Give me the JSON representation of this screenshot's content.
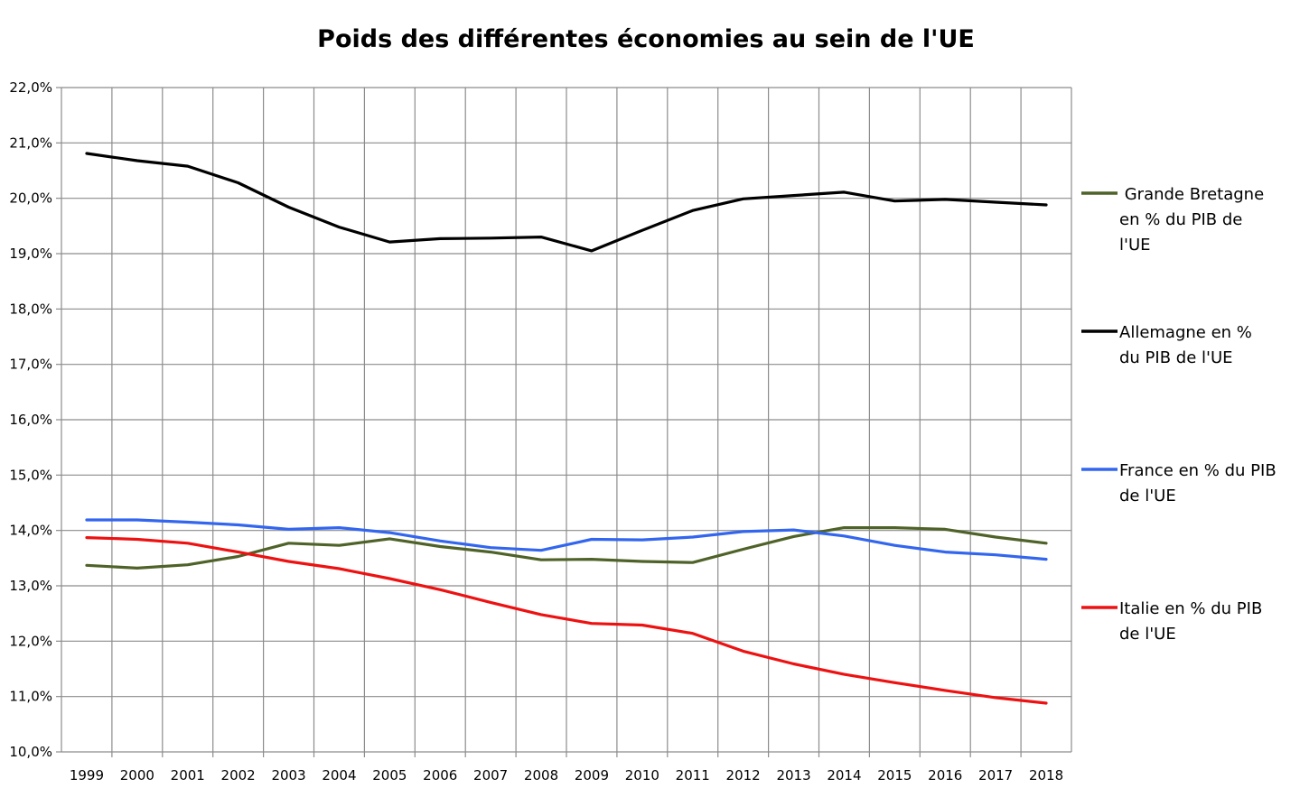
{
  "chart_data": {
    "type": "line",
    "title": "Poids des différentes économies au sein de l'UE",
    "xlabel": "",
    "ylabel": "",
    "ylim": [
      10.0,
      22.0
    ],
    "y_ticks": [
      "10,0%",
      "11,0%",
      "12,0%",
      "13,0%",
      "14,0%",
      "15,0%",
      "16,0%",
      "17,0%",
      "18,0%",
      "19,0%",
      "20,0%",
      "21,0%",
      "22,0%"
    ],
    "y_tick_values": [
      10,
      11,
      12,
      13,
      14,
      15,
      16,
      17,
      18,
      19,
      20,
      21,
      22
    ],
    "categories": [
      "1999",
      "2000",
      "2001",
      "2002",
      "2003",
      "2004",
      "2005",
      "2006",
      "2007",
      "2008",
      "2009",
      "2010",
      "2011",
      "2012",
      "2013",
      "2014",
      "2015",
      "2016",
      "2017",
      "2018"
    ],
    "grid": true,
    "legend_position": "right",
    "series": [
      {
        "name": "Grande Bretagne en % du PIB de l'UE",
        "legend_lines": [
          " Grande Bretagne",
          "en % du PIB de",
          "l'UE"
        ],
        "color": "#4f6228",
        "values": [
          13.37,
          13.32,
          13.38,
          13.53,
          13.77,
          13.73,
          13.85,
          13.71,
          13.61,
          13.47,
          13.48,
          13.44,
          13.42,
          13.66,
          13.89,
          14.05,
          14.05,
          14.02,
          13.88,
          13.77
        ]
      },
      {
        "name": "Allemagne en % du PIB de l'UE",
        "legend_lines": [
          "Allemagne en %",
          "du PIB de l'UE"
        ],
        "color": "#000000",
        "values": [
          20.81,
          20.68,
          20.58,
          20.28,
          19.84,
          19.48,
          19.21,
          19.27,
          19.28,
          19.3,
          19.05,
          19.42,
          19.78,
          19.99,
          20.05,
          20.11,
          19.95,
          19.98,
          19.93,
          19.88
        ]
      },
      {
        "name": "France en % du PIB de l'UE",
        "legend_lines": [
          "France en % du PIB",
          "de l'UE"
        ],
        "color": "#3366ee",
        "values": [
          14.19,
          14.19,
          14.15,
          14.1,
          14.02,
          14.05,
          13.96,
          13.81,
          13.69,
          13.64,
          13.84,
          13.83,
          13.88,
          13.98,
          14.01,
          13.9,
          13.73,
          13.61,
          13.56,
          13.48
        ]
      },
      {
        "name": "Italie en % du PIB de l'UE",
        "legend_lines": [
          "Italie en % du PIB",
          "de l'UE"
        ],
        "color": "#ee1111",
        "values": [
          13.87,
          13.84,
          13.77,
          13.61,
          13.44,
          13.31,
          13.13,
          12.93,
          12.7,
          12.48,
          12.32,
          12.29,
          12.14,
          11.82,
          11.59,
          11.4,
          11.25,
          11.11,
          10.98,
          10.88
        ]
      }
    ]
  }
}
